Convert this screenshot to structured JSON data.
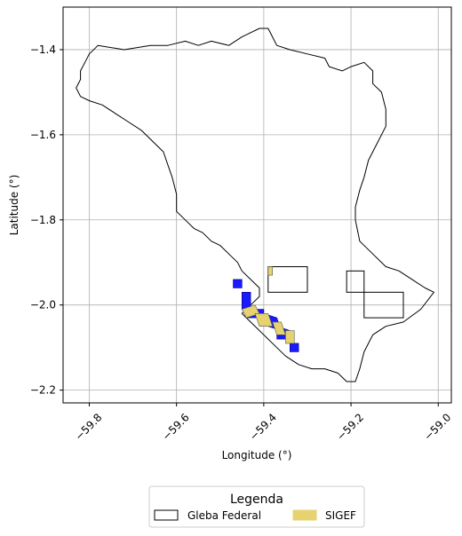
{
  "chart_data": {
    "type": "map",
    "xlabel": "Longitude (°)",
    "ylabel": "Latitude (°)",
    "xlim": [
      -59.86,
      -58.97
    ],
    "ylim": [
      -2.23,
      -1.3
    ],
    "x_ticks": [
      -59.8,
      -59.6,
      -59.4,
      -59.2,
      -59.0
    ],
    "x_tick_labels": [
      "−59.8",
      "−59.6",
      "−59.4",
      "−59.2",
      "−59.0"
    ],
    "y_ticks": [
      -1.4,
      -1.6,
      -1.8,
      -2.0,
      -2.2
    ],
    "y_tick_labels": [
      "−1.4",
      "−1.6",
      "−1.8",
      "−2.0",
      "−2.2"
    ],
    "grid": true,
    "legend": {
      "title": "Legenda",
      "placement": "bottom-center",
      "entries": [
        {
          "label": "Gleba Federal",
          "style": "outline",
          "color": "#000000"
        },
        {
          "label": "SIGEF",
          "style": "fill",
          "color": "#e6d370"
        }
      ]
    },
    "gleba_outline": [
      [
        -59.78,
        -1.39
      ],
      [
        -59.72,
        -1.4
      ],
      [
        -59.66,
        -1.39
      ],
      [
        -59.62,
        -1.39
      ],
      [
        -59.58,
        -1.38
      ],
      [
        -59.55,
        -1.39
      ],
      [
        -59.52,
        -1.38
      ],
      [
        -59.48,
        -1.39
      ],
      [
        -59.45,
        -1.37
      ],
      [
        -59.43,
        -1.36
      ],
      [
        -59.41,
        -1.35
      ],
      [
        -59.39,
        -1.35
      ],
      [
        -59.38,
        -1.37
      ],
      [
        -59.37,
        -1.39
      ],
      [
        -59.34,
        -1.4
      ],
      [
        -59.3,
        -1.41
      ],
      [
        -59.26,
        -1.42
      ],
      [
        -59.25,
        -1.44
      ],
      [
        -59.22,
        -1.45
      ],
      [
        -59.2,
        -1.44
      ],
      [
        -59.17,
        -1.43
      ],
      [
        -59.15,
        -1.45
      ],
      [
        -59.15,
        -1.48
      ],
      [
        -59.13,
        -1.5
      ],
      [
        -59.12,
        -1.54
      ],
      [
        -59.12,
        -1.58
      ],
      [
        -59.14,
        -1.62
      ],
      [
        -59.16,
        -1.66
      ],
      [
        -59.17,
        -1.7
      ],
      [
        -59.18,
        -1.73
      ],
      [
        -59.19,
        -1.77
      ],
      [
        -59.19,
        -1.8
      ],
      [
        -59.18,
        -1.85
      ],
      [
        -59.15,
        -1.88
      ],
      [
        -59.12,
        -1.91
      ],
      [
        -59.09,
        -1.92
      ],
      [
        -59.06,
        -1.94
      ],
      [
        -59.03,
        -1.96
      ],
      [
        -59.01,
        -1.97
      ],
      [
        -59.04,
        -2.01
      ],
      [
        -59.08,
        -2.04
      ],
      [
        -59.12,
        -2.05
      ],
      [
        -59.15,
        -2.07
      ],
      [
        -59.17,
        -2.11
      ],
      [
        -59.18,
        -2.15
      ],
      [
        -59.19,
        -2.18
      ],
      [
        -59.21,
        -2.18
      ],
      [
        -59.23,
        -2.16
      ],
      [
        -59.26,
        -2.15
      ],
      [
        -59.29,
        -2.15
      ],
      [
        -59.32,
        -2.14
      ],
      [
        -59.35,
        -2.12
      ],
      [
        -59.37,
        -2.1
      ],
      [
        -59.4,
        -2.07
      ],
      [
        -59.43,
        -2.04
      ],
      [
        -59.45,
        -2.02
      ],
      [
        -59.43,
        -2.0
      ],
      [
        -59.41,
        -1.98
      ],
      [
        -59.41,
        -1.96
      ],
      [
        -59.43,
        -1.94
      ],
      [
        -59.45,
        -1.92
      ],
      [
        -59.46,
        -1.9
      ],
      [
        -59.48,
        -1.88
      ],
      [
        -59.5,
        -1.86
      ],
      [
        -59.52,
        -1.85
      ],
      [
        -59.54,
        -1.83
      ],
      [
        -59.56,
        -1.82
      ],
      [
        -59.58,
        -1.8
      ],
      [
        -59.6,
        -1.78
      ],
      [
        -59.6,
        -1.74
      ],
      [
        -59.61,
        -1.7
      ],
      [
        -59.62,
        -1.67
      ],
      [
        -59.63,
        -1.64
      ],
      [
        -59.65,
        -1.62
      ],
      [
        -59.68,
        -1.59
      ],
      [
        -59.71,
        -1.57
      ],
      [
        -59.74,
        -1.55
      ],
      [
        -59.77,
        -1.53
      ],
      [
        -59.8,
        -1.52
      ],
      [
        -59.82,
        -1.51
      ],
      [
        -59.83,
        -1.49
      ],
      [
        -59.82,
        -1.47
      ],
      [
        -59.82,
        -1.45
      ],
      [
        -59.81,
        -1.43
      ],
      [
        -59.8,
        -1.41
      ],
      [
        -59.78,
        -1.39
      ]
    ],
    "gleba_rectangles": [
      {
        "x": [
          -59.39,
          -59.3
        ],
        "y": [
          -1.97,
          -1.91
        ]
      },
      {
        "x": [
          -59.21,
          -59.17
        ],
        "y": [
          -1.97,
          -1.92
        ]
      },
      {
        "x": [
          -59.17,
          -59.08
        ],
        "y": [
          -2.03,
          -1.97
        ]
      }
    ],
    "sigef_parcels": [
      [
        [
          -59.39,
          -1.91
        ],
        [
          -59.38,
          -1.91
        ],
        [
          -59.38,
          -1.93
        ],
        [
          -59.39,
          -1.93
        ]
      ],
      [
        [
          -59.45,
          -2.01
        ],
        [
          -59.42,
          -2.0
        ],
        [
          -59.41,
          -2.02
        ],
        [
          -59.44,
          -2.03
        ]
      ],
      [
        [
          -59.42,
          -2.02
        ],
        [
          -59.39,
          -2.02
        ],
        [
          -59.38,
          -2.05
        ],
        [
          -59.41,
          -2.05
        ]
      ],
      [
        [
          -59.38,
          -2.04
        ],
        [
          -59.36,
          -2.04
        ],
        [
          -59.35,
          -2.07
        ],
        [
          -59.37,
          -2.07
        ]
      ],
      [
        [
          -59.35,
          -2.06
        ],
        [
          -59.33,
          -2.06
        ],
        [
          -59.33,
          -2.09
        ],
        [
          -59.35,
          -2.09
        ]
      ]
    ],
    "blue_parcels": [
      [
        [
          -59.45,
          -1.97
        ],
        [
          -59.43,
          -1.97
        ],
        [
          -59.43,
          -2.01
        ],
        [
          -59.45,
          -2.01
        ]
      ],
      [
        [
          -59.44,
          -2.01
        ],
        [
          -59.4,
          -2.01
        ],
        [
          -59.4,
          -2.03
        ],
        [
          -59.44,
          -2.03
        ]
      ],
      [
        [
          -59.4,
          -2.02
        ],
        [
          -59.37,
          -2.03
        ],
        [
          -59.36,
          -2.06
        ],
        [
          -59.39,
          -2.05
        ]
      ],
      [
        [
          -59.37,
          -2.05
        ],
        [
          -59.34,
          -2.06
        ],
        [
          -59.34,
          -2.08
        ],
        [
          -59.37,
          -2.08
        ]
      ],
      [
        [
          -59.34,
          -2.09
        ],
        [
          -59.32,
          -2.09
        ],
        [
          -59.32,
          -2.11
        ],
        [
          -59.34,
          -2.11
        ]
      ],
      [
        [
          -59.47,
          -1.94
        ],
        [
          -59.45,
          -1.94
        ],
        [
          -59.45,
          -1.96
        ],
        [
          -59.47,
          -1.96
        ]
      ]
    ]
  }
}
